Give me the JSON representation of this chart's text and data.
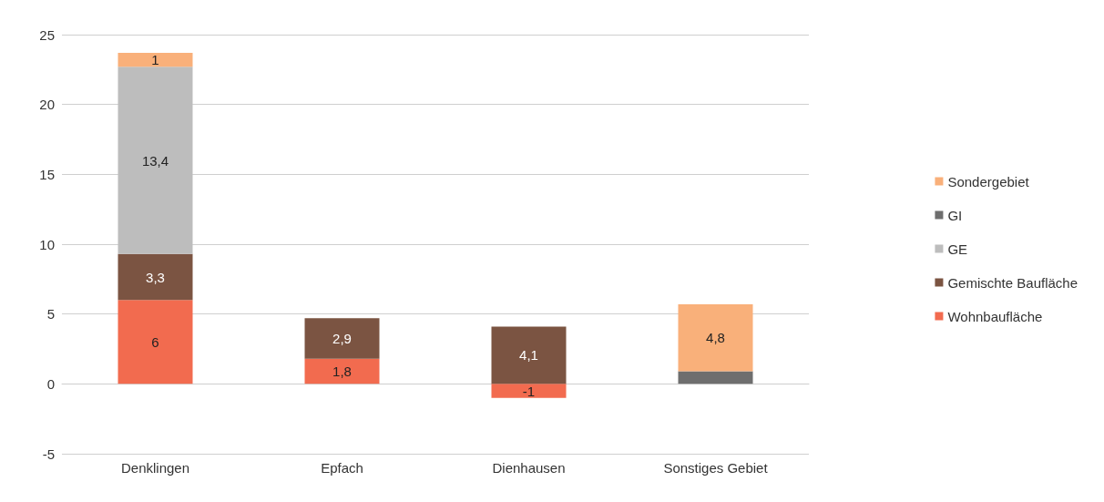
{
  "chart_data": {
    "type": "bar",
    "stacked": true,
    "categories": [
      "Denklingen",
      "Epfach",
      "Dienhausen",
      "Sonstiges Gebiet"
    ],
    "series": [
      {
        "name": "Wohnbaufläche",
        "color": "#f26b4f",
        "values": [
          6,
          1.8,
          -1,
          null
        ],
        "value_labels": [
          "6",
          "1,8",
          "-1",
          null
        ]
      },
      {
        "name": "Gemischte Baufläche",
        "color": "#7b5442",
        "values": [
          3.3,
          2.9,
          4.1,
          null
        ],
        "value_labels": [
          "3,3",
          "2,9",
          "4,1",
          null
        ]
      },
      {
        "name": "GE",
        "color": "#bdbdbd",
        "values": [
          13.4,
          null,
          null,
          null
        ],
        "value_labels": [
          "13,4",
          null,
          null,
          null
        ]
      },
      {
        "name": "GI",
        "color": "#6e6e6e",
        "values": [
          null,
          null,
          null,
          0.9
        ],
        "value_labels": [
          null,
          null,
          null,
          null
        ]
      },
      {
        "name": "Sondergebiet",
        "color": "#f9b07a",
        "values": [
          1,
          null,
          null,
          4.8
        ],
        "value_labels": [
          "1",
          null,
          null,
          "4,8"
        ]
      }
    ],
    "ylim": [
      -5,
      25
    ],
    "yticks": [
      -5,
      0,
      5,
      10,
      15,
      20,
      25
    ],
    "grid": "y",
    "legend": "right"
  }
}
